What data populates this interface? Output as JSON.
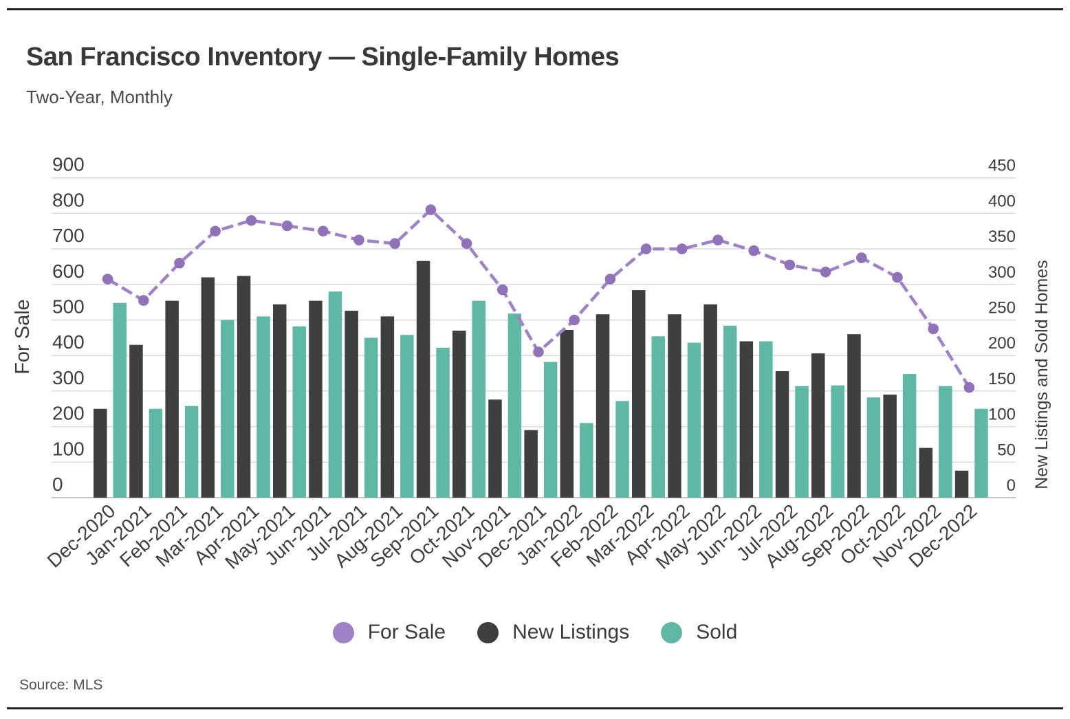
{
  "page": {
    "source": "Source: MLS"
  },
  "chart_data": {
    "type": "combo-bar-line",
    "title": "San Francisco Inventory — Single-Family Homes",
    "subtitle": "Two-Year, Monthly",
    "categories": [
      "Dec-2020",
      "Jan-2021",
      "Feb-2021",
      "Mar-2021",
      "Apr-2021",
      "May-2021",
      "Jun-2021",
      "Jul-2021",
      "Aug-2021",
      "Sep-2021",
      "Oct-2021",
      "Nov-2021",
      "Dec-2021",
      "Jan-2022",
      "Feb-2022",
      "Mar-2022",
      "Apr-2022",
      "May-2022",
      "Jun-2022",
      "Jul-2022",
      "Aug-2022",
      "Sep-2022",
      "Oct-2022",
      "Nov-2022",
      "Dec-2022"
    ],
    "series": [
      {
        "name": "For Sale",
        "type": "line",
        "axis": "left",
        "color": "#9d82c6",
        "marker_color": "#8f72b8",
        "line_style": "dashed",
        "values": [
          615,
          555,
          660,
          750,
          780,
          765,
          750,
          725,
          715,
          810,
          715,
          585,
          410,
          500,
          615,
          700,
          700,
          725,
          695,
          655,
          635,
          675,
          620,
          475,
          310
        ]
      },
      {
        "name": "New Listings",
        "type": "bar",
        "axis": "right",
        "color": "#3e3f40",
        "values": [
          125,
          215,
          277,
          310,
          312,
          272,
          277,
          263,
          255,
          333,
          235,
          138,
          95,
          236,
          258,
          292,
          258,
          272,
          220,
          178,
          203,
          230,
          145,
          70,
          38
        ]
      },
      {
        "name": "Sold",
        "type": "bar",
        "axis": "right",
        "color": "#5fb8a5",
        "values": [
          274,
          125,
          129,
          250,
          255,
          241,
          290,
          225,
          229,
          211,
          277,
          259,
          191,
          105,
          136,
          227,
          218,
          242,
          220,
          157,
          158,
          141,
          174,
          157,
          125
        ]
      }
    ],
    "left_axis": {
      "title": "For Sale",
      "min": 0,
      "max": 900,
      "step": 100
    },
    "right_axis": {
      "title": "New Listings and Sold Homes",
      "min": 0,
      "max": 450,
      "step": 50
    },
    "grid": true,
    "legend_position": "bottom"
  }
}
